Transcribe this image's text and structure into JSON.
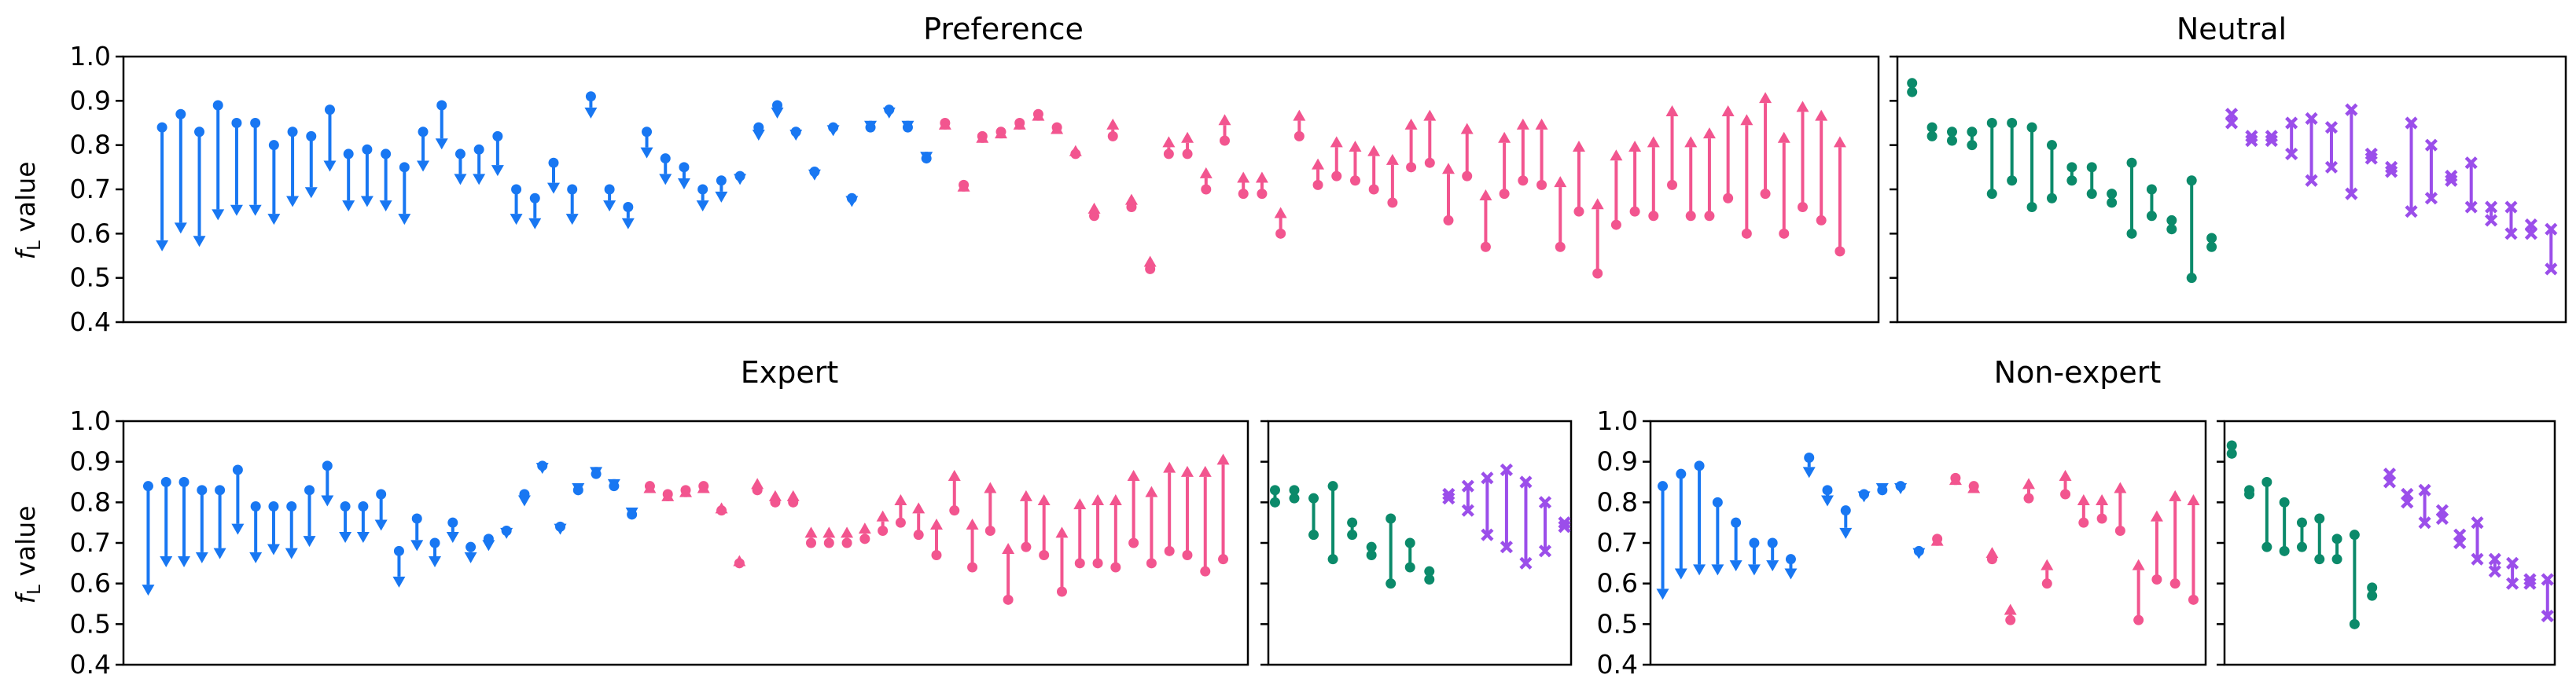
{
  "colors": {
    "down": "#1877F2",
    "up": "#F2558F",
    "neutral_bar": "#0B8A6A",
    "neutral_cross": "#9B4EEA"
  },
  "chart_data": [
    {
      "type": "dumbbell",
      "panel": "preference-top",
      "title": "Preference",
      "ylabel": "f_L value",
      "ylim": [
        0.4,
        1.0
      ],
      "yticks": [
        "0.4",
        "0.5",
        "0.6",
        "0.7",
        "0.8",
        "0.9",
        "1.0"
      ],
      "grid": false,
      "series": [
        {
          "direction": "down",
          "values": [
            [
              0.84,
              0.56
            ],
            [
              0.87,
              0.6
            ],
            [
              0.83,
              0.57
            ],
            [
              0.89,
              0.63
            ],
            [
              0.85,
              0.64
            ],
            [
              0.85,
              0.64
            ],
            [
              0.8,
              0.62
            ],
            [
              0.83,
              0.66
            ],
            [
              0.82,
              0.68
            ],
            [
              0.88,
              0.74
            ],
            [
              0.78,
              0.65
            ],
            [
              0.79,
              0.66
            ],
            [
              0.78,
              0.65
            ],
            [
              0.75,
              0.62
            ],
            [
              0.83,
              0.74
            ],
            [
              0.89,
              0.79
            ],
            [
              0.78,
              0.71
            ],
            [
              0.79,
              0.71
            ],
            [
              0.82,
              0.73
            ],
            [
              0.7,
              0.62
            ],
            [
              0.68,
              0.61
            ],
            [
              0.76,
              0.69
            ],
            [
              0.7,
              0.62
            ],
            [
              0.91,
              0.86
            ],
            [
              0.7,
              0.65
            ],
            [
              0.66,
              0.61
            ],
            [
              0.83,
              0.77
            ],
            [
              0.77,
              0.71
            ],
            [
              0.75,
              0.7
            ],
            [
              0.7,
              0.65
            ],
            [
              0.72,
              0.67
            ],
            [
              0.73,
              0.71
            ],
            [
              0.84,
              0.81
            ],
            [
              0.89,
              0.86
            ],
            [
              0.83,
              0.81
            ],
            [
              0.74,
              0.72
            ],
            [
              0.84,
              0.82
            ],
            [
              0.68,
              0.66
            ],
            [
              0.84,
              0.83
            ],
            [
              0.88,
              0.86
            ],
            [
              0.84,
              0.83
            ],
            [
              0.77,
              0.76
            ]
          ]
        },
        {
          "direction": "up",
          "values": [
            [
              0.85,
              0.86
            ],
            [
              0.71,
              0.72
            ],
            [
              0.82,
              0.83
            ],
            [
              0.83,
              0.84
            ],
            [
              0.85,
              0.86
            ],
            [
              0.87,
              0.88
            ],
            [
              0.84,
              0.85
            ],
            [
              0.78,
              0.8
            ],
            [
              0.64,
              0.67
            ],
            [
              0.82,
              0.86
            ],
            [
              0.66,
              0.69
            ],
            [
              0.52,
              0.55
            ],
            [
              0.78,
              0.82
            ],
            [
              0.78,
              0.83
            ],
            [
              0.7,
              0.75
            ],
            [
              0.81,
              0.87
            ],
            [
              0.69,
              0.74
            ],
            [
              0.69,
              0.74
            ],
            [
              0.6,
              0.66
            ],
            [
              0.82,
              0.88
            ],
            [
              0.71,
              0.77
            ],
            [
              0.73,
              0.82
            ],
            [
              0.72,
              0.81
            ],
            [
              0.7,
              0.8
            ],
            [
              0.67,
              0.78
            ],
            [
              0.75,
              0.86
            ],
            [
              0.76,
              0.88
            ],
            [
              0.63,
              0.76
            ],
            [
              0.73,
              0.85
            ],
            [
              0.57,
              0.7
            ],
            [
              0.69,
              0.83
            ],
            [
              0.72,
              0.86
            ],
            [
              0.71,
              0.86
            ],
            [
              0.57,
              0.73
            ],
            [
              0.65,
              0.81
            ],
            [
              0.51,
              0.68
            ],
            [
              0.62,
              0.79
            ],
            [
              0.65,
              0.81
            ],
            [
              0.64,
              0.82
            ],
            [
              0.71,
              0.89
            ],
            [
              0.64,
              0.82
            ],
            [
              0.64,
              0.84
            ],
            [
              0.68,
              0.89
            ],
            [
              0.6,
              0.87
            ],
            [
              0.69,
              0.92
            ],
            [
              0.6,
              0.83
            ],
            [
              0.66,
              0.9
            ],
            [
              0.63,
              0.88
            ],
            [
              0.56,
              0.82
            ]
          ]
        }
      ]
    },
    {
      "type": "dumbbell",
      "panel": "neutral-top",
      "title": "Neutral",
      "ylim": [
        0.4,
        1.0
      ],
      "series": [
        {
          "style": "bar",
          "values": [
            [
              0.94,
              0.92
            ],
            [
              0.84,
              0.82
            ],
            [
              0.83,
              0.81
            ],
            [
              0.83,
              0.8
            ],
            [
              0.85,
              0.69
            ],
            [
              0.85,
              0.72
            ],
            [
              0.84,
              0.66
            ],
            [
              0.8,
              0.68
            ],
            [
              0.75,
              0.72
            ],
            [
              0.75,
              0.69
            ],
            [
              0.69,
              0.67
            ],
            [
              0.76,
              0.6
            ],
            [
              0.7,
              0.64
            ],
            [
              0.63,
              0.61
            ],
            [
              0.72,
              0.5
            ],
            [
              0.59,
              0.57
            ]
          ]
        },
        {
          "style": "cross",
          "values": [
            [
              0.87,
              0.85
            ],
            [
              0.82,
              0.81
            ],
            [
              0.82,
              0.81
            ],
            [
              0.85,
              0.78
            ],
            [
              0.86,
              0.72
            ],
            [
              0.84,
              0.75
            ],
            [
              0.88,
              0.69
            ],
            [
              0.78,
              0.77
            ],
            [
              0.75,
              0.74
            ],
            [
              0.85,
              0.65
            ],
            [
              0.8,
              0.68
            ],
            [
              0.73,
              0.72
            ],
            [
              0.76,
              0.66
            ],
            [
              0.66,
              0.63
            ],
            [
              0.66,
              0.6
            ],
            [
              0.62,
              0.6
            ],
            [
              0.61,
              0.52
            ]
          ]
        }
      ]
    },
    {
      "type": "dumbbell",
      "panel": "expert-preference",
      "title": "Expert",
      "ylabel": "f_L value",
      "ylim": [
        0.4,
        1.0
      ],
      "series": [
        {
          "direction": "down",
          "values": [
            [
              0.84,
              0.57
            ],
            [
              0.85,
              0.64
            ],
            [
              0.85,
              0.64
            ],
            [
              0.83,
              0.65
            ],
            [
              0.83,
              0.66
            ],
            [
              0.88,
              0.72
            ],
            [
              0.79,
              0.65
            ],
            [
              0.79,
              0.67
            ],
            [
              0.79,
              0.66
            ],
            [
              0.83,
              0.69
            ],
            [
              0.89,
              0.79
            ],
            [
              0.79,
              0.7
            ],
            [
              0.79,
              0.7
            ],
            [
              0.82,
              0.73
            ],
            [
              0.68,
              0.59
            ],
            [
              0.76,
              0.68
            ],
            [
              0.7,
              0.64
            ],
            [
              0.75,
              0.7
            ],
            [
              0.69,
              0.65
            ],
            [
              0.71,
              0.68
            ],
            [
              0.73,
              0.71
            ],
            [
              0.82,
              0.79
            ],
            [
              0.89,
              0.87
            ],
            [
              0.74,
              0.72
            ],
            [
              0.83,
              0.82
            ],
            [
              0.87,
              0.86
            ],
            [
              0.84,
              0.83
            ],
            [
              0.77,
              0.76
            ]
          ]
        },
        {
          "direction": "up",
          "values": [
            [
              0.84,
              0.85
            ],
            [
              0.82,
              0.83
            ],
            [
              0.83,
              0.84
            ],
            [
              0.84,
              0.85
            ],
            [
              0.78,
              0.8
            ],
            [
              0.65,
              0.67
            ],
            [
              0.83,
              0.86
            ],
            [
              0.8,
              0.83
            ],
            [
              0.8,
              0.83
            ],
            [
              0.7,
              0.74
            ],
            [
              0.7,
              0.74
            ],
            [
              0.7,
              0.74
            ],
            [
              0.71,
              0.75
            ],
            [
              0.73,
              0.78
            ],
            [
              0.75,
              0.82
            ],
            [
              0.72,
              0.8
            ],
            [
              0.67,
              0.76
            ],
            [
              0.78,
              0.88
            ],
            [
              0.64,
              0.76
            ],
            [
              0.73,
              0.85
            ],
            [
              0.56,
              0.7
            ],
            [
              0.69,
              0.83
            ],
            [
              0.67,
              0.82
            ],
            [
              0.58,
              0.74
            ],
            [
              0.65,
              0.81
            ],
            [
              0.65,
              0.82
            ],
            [
              0.64,
              0.82
            ],
            [
              0.7,
              0.88
            ],
            [
              0.65,
              0.84
            ],
            [
              0.68,
              0.9
            ],
            [
              0.67,
              0.89
            ],
            [
              0.63,
              0.89
            ],
            [
              0.66,
              0.92
            ]
          ]
        }
      ]
    },
    {
      "type": "dumbbell",
      "panel": "expert-neutral",
      "ylim": [
        0.4,
        1.0
      ],
      "series": [
        {
          "style": "bar",
          "values": [
            [
              0.83,
              0.8
            ],
            [
              0.83,
              0.81
            ],
            [
              0.81,
              0.72
            ],
            [
              0.84,
              0.66
            ],
            [
              0.75,
              0.72
            ],
            [
              0.69,
              0.67
            ],
            [
              0.76,
              0.6
            ],
            [
              0.7,
              0.64
            ],
            [
              0.63,
              0.61
            ]
          ]
        },
        {
          "style": "cross",
          "values": [
            [
              0.82,
              0.81
            ],
            [
              0.84,
              0.78
            ],
            [
              0.86,
              0.72
            ],
            [
              0.88,
              0.69
            ],
            [
              0.85,
              0.65
            ],
            [
              0.8,
              0.68
            ],
            [
              0.75,
              0.74
            ]
          ]
        }
      ]
    },
    {
      "type": "dumbbell",
      "panel": "nonexpert-preference",
      "title": "Non-expert",
      "ylim": [
        0.4,
        1.0
      ],
      "series": [
        {
          "direction": "down",
          "values": [
            [
              0.84,
              0.56
            ],
            [
              0.87,
              0.61
            ],
            [
              0.89,
              0.62
            ],
            [
              0.8,
              0.62
            ],
            [
              0.75,
              0.63
            ],
            [
              0.7,
              0.62
            ],
            [
              0.7,
              0.63
            ],
            [
              0.66,
              0.61
            ],
            [
              0.91,
              0.86
            ],
            [
              0.83,
              0.79
            ],
            [
              0.78,
              0.71
            ],
            [
              0.82,
              0.8
            ],
            [
              0.83,
              0.82
            ],
            [
              0.84,
              0.82
            ],
            [
              0.68,
              0.66
            ]
          ]
        },
        {
          "direction": "up",
          "values": [
            [
              0.71,
              0.72
            ],
            [
              0.86,
              0.87
            ],
            [
              0.84,
              0.85
            ],
            [
              0.66,
              0.69
            ],
            [
              0.51,
              0.55
            ],
            [
              0.81,
              0.86
            ],
            [
              0.6,
              0.66
            ],
            [
              0.82,
              0.88
            ],
            [
              0.75,
              0.82
            ],
            [
              0.76,
              0.82
            ],
            [
              0.73,
              0.85
            ],
            [
              0.51,
              0.66
            ],
            [
              0.61,
              0.78
            ],
            [
              0.6,
              0.83
            ],
            [
              0.56,
              0.82
            ]
          ]
        }
      ]
    },
    {
      "type": "dumbbell",
      "panel": "nonexpert-neutral",
      "ylim": [
        0.4,
        1.0
      ],
      "series": [
        {
          "style": "bar",
          "values": [
            [
              0.94,
              0.92
            ],
            [
              0.83,
              0.82
            ],
            [
              0.85,
              0.69
            ],
            [
              0.8,
              0.68
            ],
            [
              0.75,
              0.69
            ],
            [
              0.76,
              0.66
            ],
            [
              0.71,
              0.66
            ],
            [
              0.72,
              0.5
            ],
            [
              0.59,
              0.57
            ]
          ]
        },
        {
          "style": "cross",
          "values": [
            [
              0.87,
              0.85
            ],
            [
              0.82,
              0.8
            ],
            [
              0.83,
              0.75
            ],
            [
              0.78,
              0.76
            ],
            [
              0.72,
              0.7
            ],
            [
              0.75,
              0.66
            ],
            [
              0.66,
              0.63
            ],
            [
              0.65,
              0.6
            ],
            [
              0.61,
              0.6
            ],
            [
              0.61,
              0.52
            ]
          ]
        }
      ]
    }
  ],
  "labels": {
    "ylabel_f": "f",
    "ylabel_sub": "L",
    "ylabel_rest": " value",
    "yticks": [
      "0.4",
      "0.5",
      "0.6",
      "0.7",
      "0.8",
      "0.9",
      "1.0"
    ]
  }
}
